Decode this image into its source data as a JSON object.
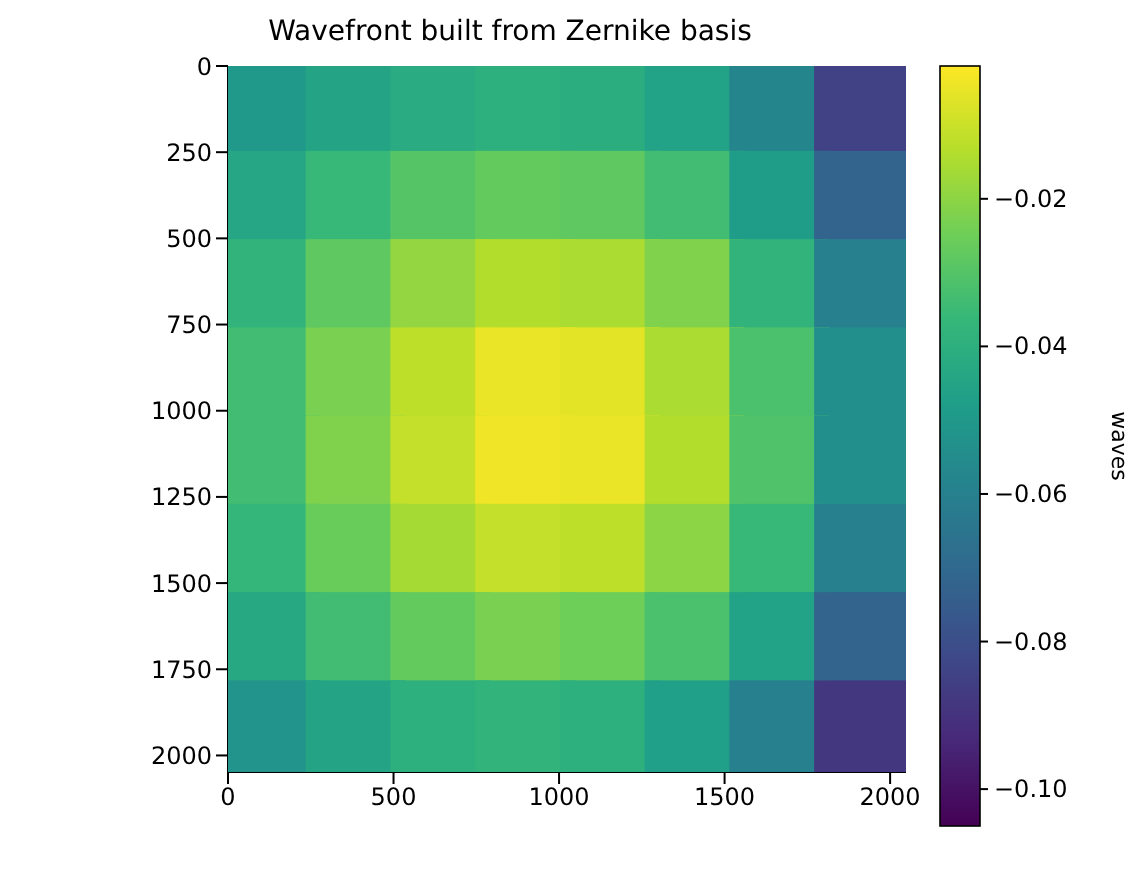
{
  "chart_data": {
    "type": "heatmap",
    "title": "Wavefront built from Zernike basis",
    "clabel": "waves",
    "x": [
      128,
      384,
      640,
      896,
      1152,
      1408,
      1664,
      1920
    ],
    "y": [
      128,
      384,
      640,
      896,
      1152,
      1408,
      1664,
      1920
    ],
    "cells": [
      [
        -0.05,
        -0.045,
        -0.042,
        -0.04,
        -0.041,
        -0.046,
        -0.058,
        -0.085
      ],
      [
        -0.044,
        -0.036,
        -0.03,
        -0.027,
        -0.028,
        -0.034,
        -0.048,
        -0.072
      ],
      [
        -0.038,
        -0.028,
        -0.019,
        -0.014,
        -0.015,
        -0.022,
        -0.038,
        -0.06
      ],
      [
        -0.034,
        -0.023,
        -0.012,
        -0.005,
        -0.006,
        -0.015,
        -0.032,
        -0.054
      ],
      [
        -0.034,
        -0.022,
        -0.011,
        -0.004,
        -0.005,
        -0.014,
        -0.031,
        -0.054
      ],
      [
        -0.037,
        -0.026,
        -0.016,
        -0.011,
        -0.012,
        -0.02,
        -0.036,
        -0.06
      ],
      [
        -0.043,
        -0.034,
        -0.027,
        -0.023,
        -0.025,
        -0.032,
        -0.046,
        -0.072
      ],
      [
        -0.052,
        -0.045,
        -0.04,
        -0.038,
        -0.04,
        -0.047,
        -0.06,
        -0.088
      ]
    ],
    "xlim": [
      0,
      2048
    ],
    "xticks": [
      0,
      500,
      1000,
      1500,
      2000
    ],
    "ylim": [
      2048,
      0
    ],
    "yticks": [
      0,
      250,
      500,
      750,
      1000,
      1250,
      1500,
      1750,
      2000
    ],
    "clim": [
      -0.105,
      -0.002
    ],
    "cticks": [
      {
        "value": -0.02,
        "label": "−0.02"
      },
      {
        "value": -0.04,
        "label": "−0.04"
      },
      {
        "value": -0.06,
        "label": "−0.06"
      },
      {
        "value": -0.08,
        "label": "−0.08"
      },
      {
        "value": -0.1,
        "label": "−0.10"
      }
    ]
  }
}
